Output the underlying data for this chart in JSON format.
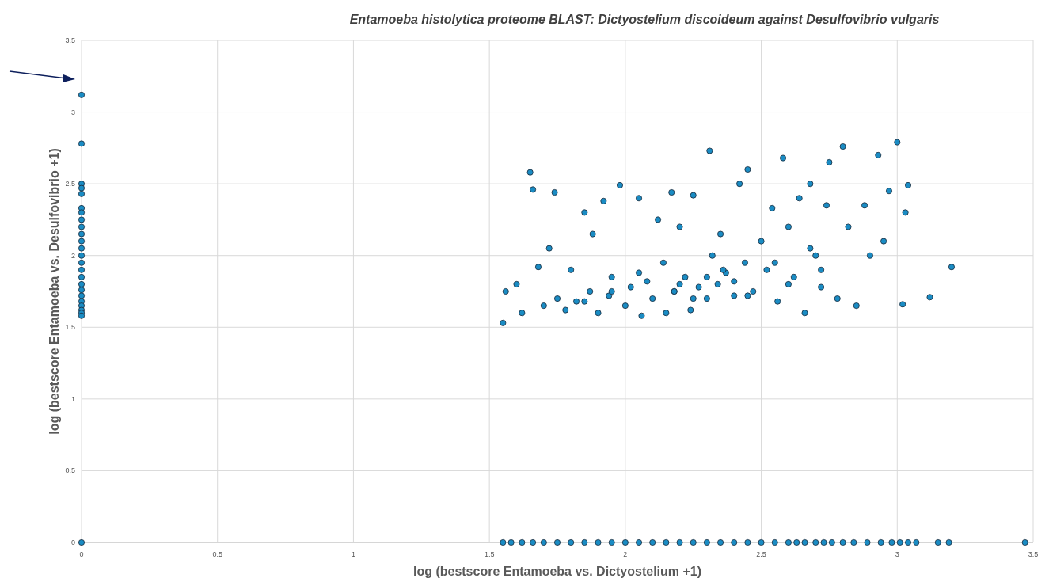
{
  "chart_data": {
    "type": "scatter",
    "title": "Entamoeba histolytica proteome BLAST: Dictyostelium discoideum against Desulfovibrio vulgaris",
    "xlabel": "log (bestscore Entamoeba vs. Dictyostelium +1)",
    "ylabel": "log (bestscore  Entamoeba vs. Desulfovibrio +1)",
    "xlim": [
      0,
      3.5
    ],
    "ylim": [
      0,
      3.5
    ],
    "xticks": [
      0,
      0.5,
      1,
      1.5,
      2,
      2.5,
      3,
      3.5
    ],
    "yticks": [
      0,
      0.5,
      1,
      1.5,
      2,
      2.5,
      3,
      3.5
    ],
    "grid": true,
    "marker": "circle",
    "series": [
      {
        "color": "#1a8cc4",
        "x": [
          0,
          0,
          0,
          0,
          0,
          0,
          0,
          0,
          0,
          0,
          0,
          0,
          0,
          0,
          0,
          0,
          0,
          0,
          0,
          0,
          0,
          0,
          0,
          0,
          0,
          1.55,
          1.58,
          1.62,
          1.66,
          1.7,
          1.75,
          1.8,
          1.85,
          1.9,
          1.95,
          2.0,
          2.05,
          2.1,
          2.15,
          2.2,
          2.25,
          2.3,
          2.35,
          2.4,
          2.45,
          2.5,
          2.55,
          2.6,
          2.63,
          2.66,
          2.7,
          2.73,
          2.76,
          2.8,
          2.84,
          2.89,
          2.94,
          2.98,
          3.01,
          3.04,
          3.07,
          3.15,
          3.19,
          3.47,
          1.55,
          1.56,
          1.6,
          1.62,
          1.65,
          1.66,
          1.68,
          1.7,
          1.72,
          1.74,
          1.75,
          1.78,
          1.8,
          1.82,
          1.85,
          1.87,
          1.88,
          1.9,
          1.92,
          1.94,
          1.95,
          1.98,
          2.0,
          2.02,
          2.05,
          2.06,
          2.08,
          2.1,
          2.12,
          2.14,
          2.15,
          2.17,
          2.18,
          2.2,
          2.22,
          2.24,
          2.25,
          2.27,
          2.3,
          2.31,
          2.32,
          2.34,
          2.35,
          2.37,
          2.4,
          2.42,
          2.44,
          2.45,
          2.47,
          2.5,
          2.52,
          2.54,
          2.56,
          2.58,
          2.6,
          2.62,
          2.64,
          2.66,
          2.68,
          2.7,
          2.72,
          2.74,
          2.75,
          2.78,
          2.8,
          2.82,
          2.85,
          2.88,
          2.9,
          2.93,
          2.95,
          2.97,
          3.0,
          3.02,
          3.03,
          3.04,
          3.12,
          3.2,
          2.2,
          2.25,
          2.18,
          2.3,
          2.36,
          2.4,
          2.45,
          2.05,
          1.95,
          1.85,
          2.55,
          2.6,
          2.68,
          2.72
        ],
        "values": [
          3.12,
          2.78,
          2.5,
          2.47,
          2.43,
          2.33,
          2.3,
          2.25,
          2.2,
          2.15,
          2.1,
          2.05,
          2.0,
          1.95,
          1.9,
          1.85,
          1.8,
          1.76,
          1.72,
          1.68,
          1.65,
          1.62,
          1.6,
          1.58,
          0,
          0,
          0,
          0,
          0,
          0,
          0,
          0,
          0,
          0,
          0,
          0,
          0,
          0,
          0,
          0,
          0,
          0,
          0,
          0,
          0,
          0,
          0,
          0,
          0,
          0,
          0,
          0,
          0,
          0,
          0,
          0,
          0,
          0,
          0,
          0,
          0,
          0,
          0,
          0,
          1.53,
          1.75,
          1.8,
          1.6,
          2.58,
          2.46,
          1.92,
          1.65,
          2.05,
          2.44,
          1.7,
          1.62,
          1.9,
          1.68,
          2.3,
          1.75,
          2.15,
          1.6,
          2.38,
          1.72,
          1.85,
          2.49,
          1.65,
          1.78,
          2.4,
          1.58,
          1.82,
          1.7,
          2.25,
          1.95,
          1.6,
          2.44,
          1.75,
          2.2,
          1.85,
          1.62,
          2.42,
          1.78,
          1.7,
          2.73,
          2.0,
          1.8,
          2.15,
          1.88,
          1.72,
          2.5,
          1.95,
          2.6,
          1.75,
          2.1,
          1.9,
          2.33,
          1.68,
          2.68,
          2.2,
          1.85,
          2.4,
          1.6,
          2.5,
          2.0,
          1.78,
          2.35,
          2.65,
          1.7,
          2.76,
          2.2,
          1.65,
          2.35,
          2.0,
          2.7,
          2.1,
          2.45,
          2.79,
          1.66,
          2.3,
          2.49,
          1.71,
          1.92,
          1.8,
          1.7,
          1.75,
          1.85,
          1.9,
          1.82,
          1.72,
          1.88,
          1.75,
          1.68,
          1.95,
          1.8,
          2.05,
          1.9
        ]
      }
    ]
  }
}
